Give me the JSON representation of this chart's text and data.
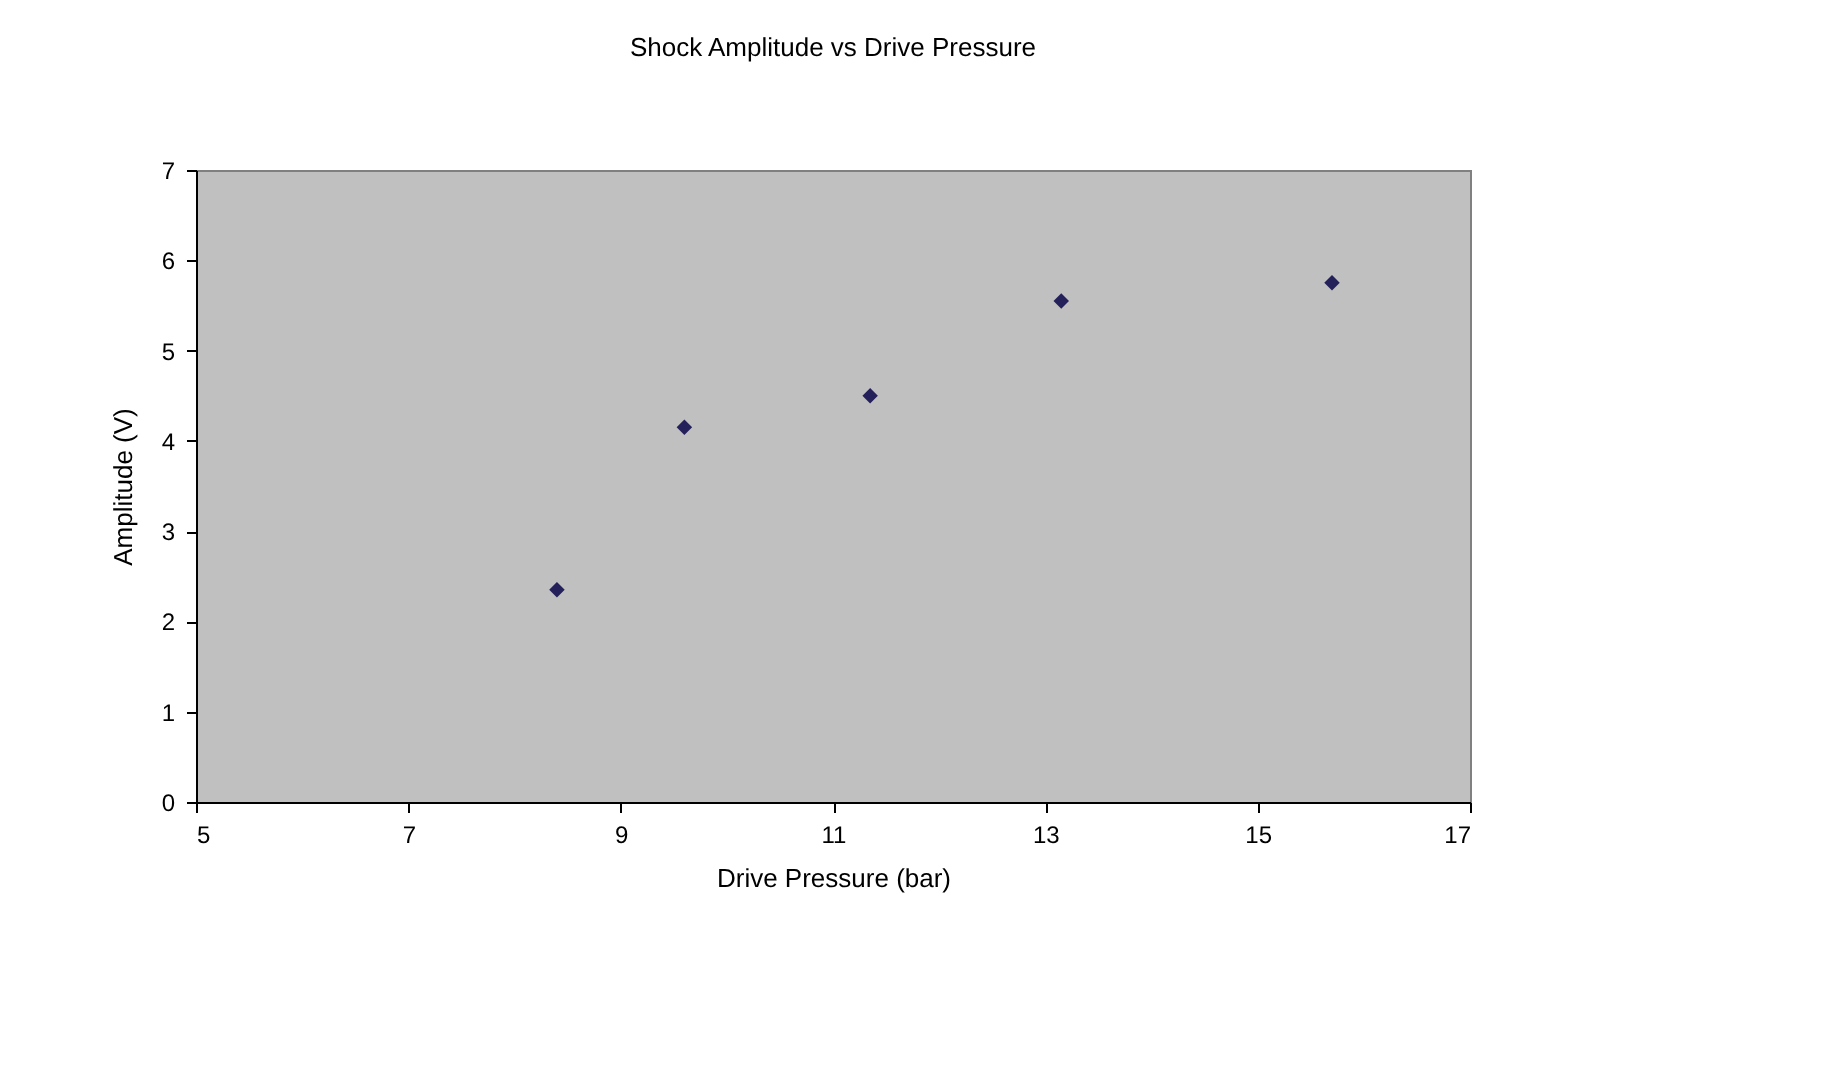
{
  "chart_data": {
    "type": "scatter",
    "title": "Shock Amplitude vs Drive Pressure",
    "xlabel": "Drive Pressure (bar)",
    "ylabel": "Amplitude (V)",
    "x": [
      8.4,
      9.6,
      11.35,
      13.15,
      15.7
    ],
    "series": [
      {
        "color": "#24205a",
        "values": [
          2.35,
          4.15,
          4.5,
          5.55,
          5.75
        ]
      }
    ],
    "xlim": [
      5,
      17
    ],
    "xticks": [
      5,
      7,
      9,
      11,
      13,
      15,
      17
    ],
    "ylim": [
      0,
      7
    ],
    "yticks": [
      0,
      1,
      2,
      3,
      4,
      5,
      6,
      7
    ],
    "grid": false,
    "marker": "diamond"
  }
}
